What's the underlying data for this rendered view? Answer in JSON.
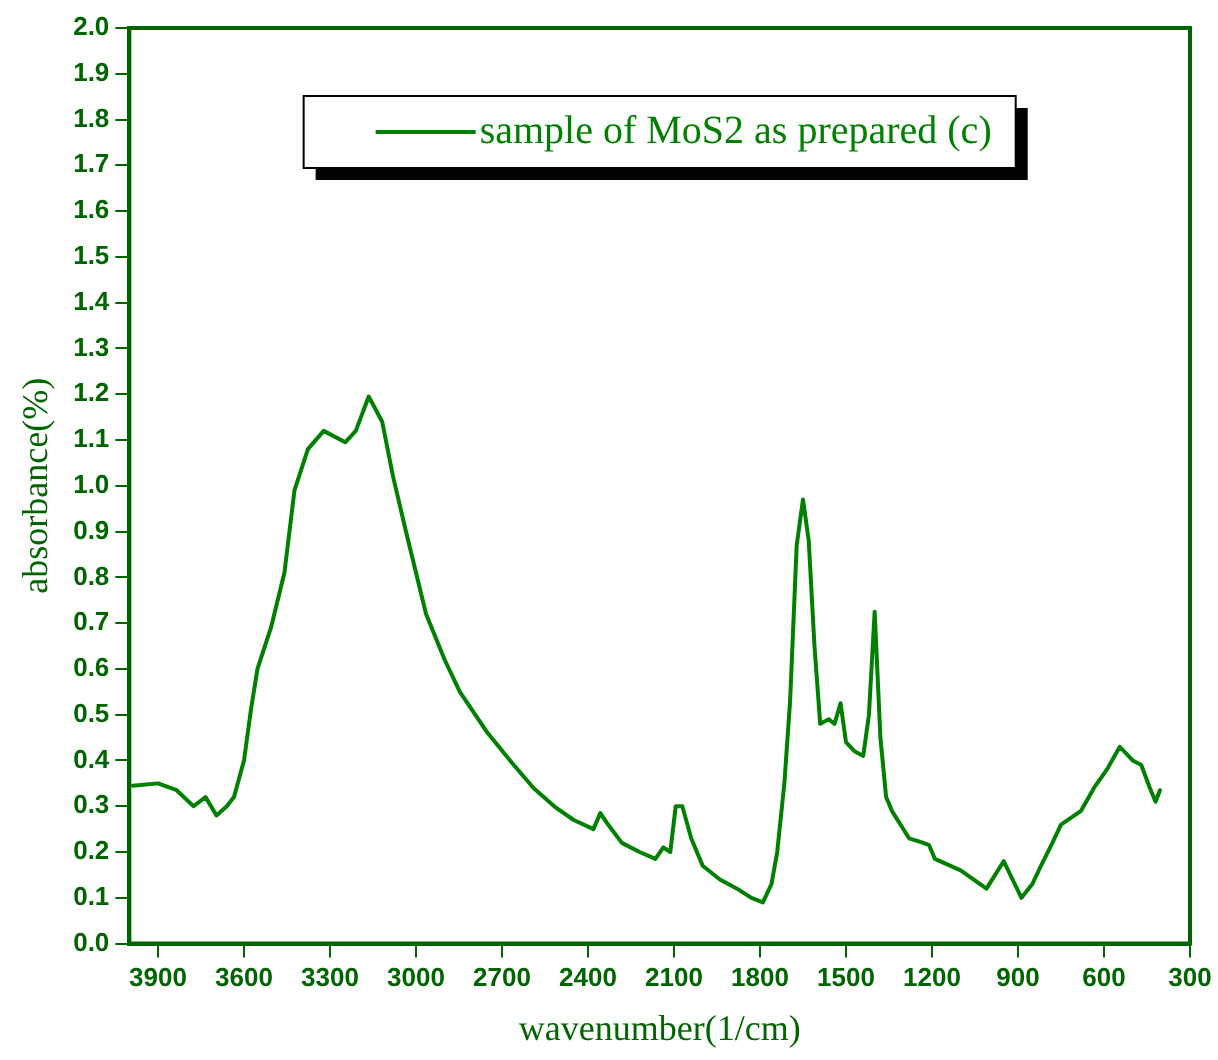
{
  "chart_data": {
    "type": "line",
    "xlabel": "wavenumber(1/cm)",
    "ylabel": "absorbance(%)",
    "x": [
      3988,
      3900,
      3835,
      3776,
      3734,
      3696,
      3660,
      3635,
      3600,
      3576,
      3553,
      3506,
      3459,
      3424,
      3377,
      3322,
      3247,
      3210,
      3165,
      3118,
      3080,
      3035,
      2965,
      2900,
      2847,
      2750,
      2659,
      2590,
      2518,
      2450,
      2381,
      2357,
      2330,
      2282,
      2220,
      2165,
      2137,
      2113,
      2094,
      2071,
      2040,
      2000,
      1940,
      1880,
      1830,
      1790,
      1760,
      1740,
      1715,
      1695,
      1672,
      1650,
      1630,
      1610,
      1590,
      1560,
      1540,
      1519,
      1500,
      1470,
      1440,
      1420,
      1400,
      1380,
      1360,
      1340,
      1280,
      1230,
      1210,
      1190,
      1100,
      1010,
      950,
      888,
      850,
      820,
      780,
      750,
      680,
      635,
      590,
      545,
      500,
      470,
      440,
      420,
      405
    ],
    "series": [
      {
        "name": "sample of MoS2 as prepared (c)",
        "color": "#008000",
        "values": [
          0.345,
          0.35,
          0.335,
          0.3,
          0.32,
          0.28,
          0.3,
          0.32,
          0.4,
          0.51,
          0.6,
          0.69,
          0.81,
          0.99,
          1.08,
          1.12,
          1.095,
          1.12,
          1.195,
          1.14,
          1.02,
          0.9,
          0.72,
          0.62,
          0.55,
          0.46,
          0.39,
          0.34,
          0.3,
          0.27,
          0.25,
          0.285,
          0.26,
          0.22,
          0.2,
          0.185,
          0.21,
          0.2,
          0.3,
          0.3,
          0.23,
          0.17,
          0.14,
          0.12,
          0.1,
          0.09,
          0.13,
          0.2,
          0.35,
          0.53,
          0.87,
          0.97,
          0.88,
          0.65,
          0.48,
          0.49,
          0.48,
          0.525,
          0.44,
          0.42,
          0.41,
          0.5,
          0.725,
          0.45,
          0.32,
          0.29,
          0.23,
          0.22,
          0.215,
          0.185,
          0.16,
          0.12,
          0.18,
          0.1,
          0.13,
          0.17,
          0.22,
          0.26,
          0.29,
          0.34,
          0.38,
          0.43,
          0.4,
          0.39,
          0.34,
          0.31,
          0.335
        ]
      }
    ],
    "xlim": [
      4000,
      300
    ],
    "xticks": [
      3900,
      3600,
      3300,
      3000,
      2700,
      2400,
      2100,
      1800,
      1500,
      1200,
      900,
      600,
      300
    ],
    "ylim": [
      0,
      2
    ],
    "yticks": [
      {
        "value": 0,
        "label": "0.0"
      },
      {
        "value": 0.1,
        "label": "0.1"
      },
      {
        "value": 0.2,
        "label": "0.2"
      },
      {
        "value": 0.3,
        "label": "0.3"
      },
      {
        "value": 0.4,
        "label": "0.4"
      },
      {
        "value": 0.5,
        "label": "0.5"
      },
      {
        "value": 0.6,
        "label": "0.6"
      },
      {
        "value": 0.7,
        "label": "0.7"
      },
      {
        "value": 0.8,
        "label": "0.8"
      },
      {
        "value": 0.9,
        "label": "0.9"
      },
      {
        "value": 1,
        "label": "1.0"
      },
      {
        "value": 1.1,
        "label": "1.1"
      },
      {
        "value": 1.2,
        "label": "1.2"
      },
      {
        "value": 1.3,
        "label": "1.3"
      },
      {
        "value": 1.4,
        "label": "1.4"
      },
      {
        "value": 1.5,
        "label": "1.5"
      },
      {
        "value": 1.6,
        "label": "1.6"
      },
      {
        "value": 1.7,
        "label": "1.7"
      },
      {
        "value": 1.8,
        "label": "1.8"
      },
      {
        "value": 1.9,
        "label": "1.9"
      },
      {
        "value": 2,
        "label": "2.0"
      }
    ],
    "grid": false,
    "legend": "top",
    "marker": "none",
    "line_style": "solid"
  }
}
